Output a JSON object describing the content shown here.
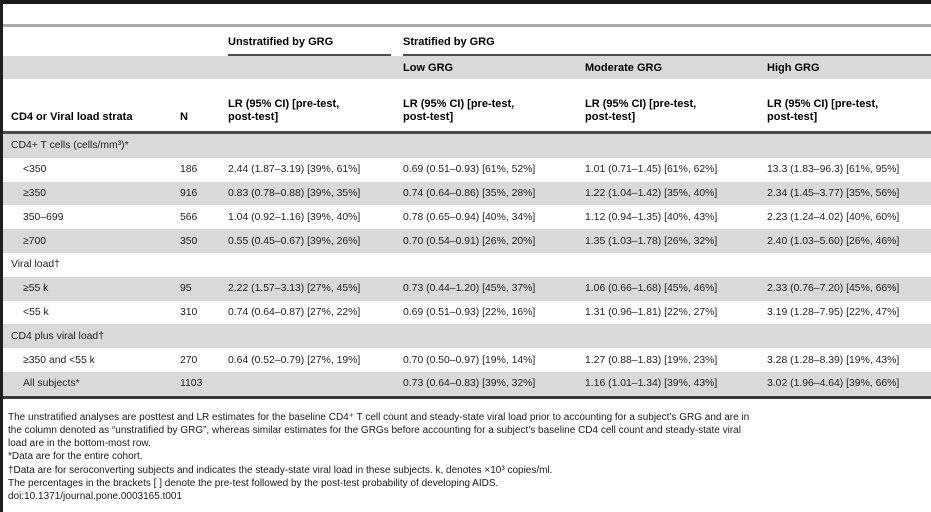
{
  "table": {
    "group_unstratified": "Unstratified by GRG",
    "group_stratified": "Stratified by GRG",
    "grg_headers": [
      "Low GRG",
      "Moderate GRG",
      "High GRG"
    ],
    "strata_header": "CD4 or Viral load strata",
    "n_header": "N",
    "lr_line1": "LR (95% CI) [pre-test,",
    "lr_line2": "post-test]",
    "rows": [
      {
        "type": "section",
        "label": "CD4+ T cells (cells/mm³)*"
      },
      {
        "type": "data",
        "label": "<350",
        "n": "186",
        "unstratified": "2.44 (1.87–3.19) [39%, 61%]",
        "low": "0.69 (0.51–0.93) [61%, 52%]",
        "moderate": "1.01 (0.71–1.45) [61%, 62%]",
        "high": "13.3 (1.83–96.3) [61%, 95%]"
      },
      {
        "type": "data",
        "label": "≥350",
        "n": "916",
        "unstratified": "0.83 (0.78–0.88) [39%, 35%]",
        "low": "0.74 (0.64–0.86) [35%, 28%]",
        "moderate": "1.22 (1.04–1.42) [35%, 40%]",
        "high": "2.34 (1.45–3.77) [35%, 56%]"
      },
      {
        "type": "data",
        "label": "350–699",
        "n": "566",
        "unstratified": "1.04 (0.92–1.16) [39%, 40%]",
        "low": "0.78 (0.65–0.94) [40%, 34%]",
        "moderate": "1.12 (0.94–1.35) [40%, 43%]",
        "high": "2.23 (1.24–4.02) [40%, 60%]"
      },
      {
        "type": "data",
        "label": "≥700",
        "n": "350",
        "unstratified": "0.55 (0.45–0.67) [39%, 26%]",
        "low": "0.70 (0.54–0.91) [26%, 20%]",
        "moderate": "1.35 (1.03–1.78) [26%, 32%]",
        "high": "2.40 (1.03–5.60) [26%, 46%]"
      },
      {
        "type": "section",
        "label": "Viral load†"
      },
      {
        "type": "data",
        "label": "≥55 k",
        "n": "95",
        "unstratified": "2.22 (1.57–3.13) [27%, 45%]",
        "low": "0.73 (0.44–1.20) [45%, 37%]",
        "moderate": "1.06 (0.66–1.68) [45%, 46%]",
        "high": "2.33 (0.76–7.20) [45%, 66%]"
      },
      {
        "type": "data",
        "label": "<55 k",
        "n": "310",
        "unstratified": "0.74 (0.64–0.87) [27%, 22%]",
        "low": "0.69 (0.51–0.93) [22%, 16%]",
        "moderate": "1.31 (0.96–1.81) [22%, 27%]",
        "high": "3.19 (1.28–7.95) [22%, 47%]"
      },
      {
        "type": "section",
        "label": "CD4 plus viral load†"
      },
      {
        "type": "data",
        "label": "≥350 and <55 k",
        "n": "270",
        "unstratified": "0.64 (0.52–0.79) [27%, 19%]",
        "low": "0.70 (0.50–0.97) [19%, 14%]",
        "moderate": "1.27 (0.88–1.83) [19%, 23%]",
        "high": "3.28 (1.28–8.39) [19%, 43%]"
      },
      {
        "type": "data",
        "label": "All subjects*",
        "n": "1103",
        "unstratified": "",
        "low": "0.73 (0.64–0.83) [39%, 32%]",
        "moderate": "1.16 (1.01–1.34) [39%, 43%]",
        "high": "3.02 (1.96–4.64) [39%, 66%]"
      }
    ]
  },
  "footnotes": [
    "The unstratified analyses are posttest and LR estimates for the baseline CD4⁺ T cell count and steady-state viral load prior to accounting for a subject’s GRG and are in",
    "the column denoted as “unstratified by GRG”, whereas similar estimates for the GRGs before accounting for a subject’s baseline CD4 cell count and steady-state viral",
    "load are in the bottom-most row.",
    "*Data are for the entire cohort.",
    "†Data are for seroconverting subjects and indicates the steady-state viral load in these subjects. k, denotes ×10³ copies/ml.",
    "The percentages in the brackets [ ] denote the pre-test followed by the post-test probability of developing AIDS.",
    "doi:10.1371/journal.pone.0003165.t001"
  ]
}
